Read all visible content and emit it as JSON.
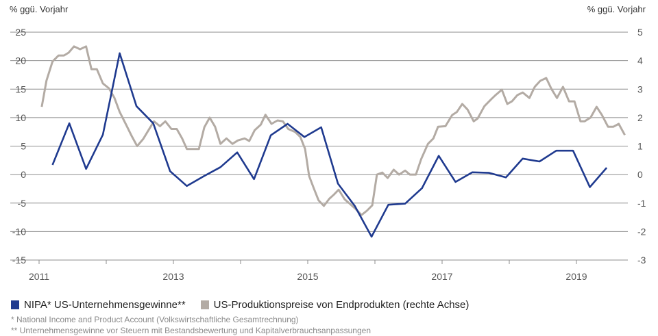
{
  "chart_data": {
    "type": "line",
    "left_axis_label": "% ggü. Vorjahr",
    "right_axis_label": "% ggü. Vorjahr",
    "ylim_left": [
      -15,
      25
    ],
    "ylim_right": [
      -3,
      5
    ],
    "yticks_left": [
      "25",
      "20",
      "15",
      "10",
      "5",
      "0",
      "-5",
      "-10",
      "-15"
    ],
    "yticks_right": [
      "5",
      "4",
      "3",
      "2",
      "1",
      "0",
      "-1",
      "-2",
      "-3"
    ],
    "xticks": [
      "2011",
      "2013",
      "2015",
      "2017",
      "2019"
    ],
    "xlim": [
      2011,
      2019.8
    ],
    "grid": true,
    "legend_position": "bottom",
    "series": [
      {
        "name": "NIPA* US-Unternehmensgewinne**",
        "axis": "left",
        "color": "#1f3a8f",
        "x": [
          2011.2,
          2011.45,
          2011.7,
          2011.95,
          2012.2,
          2012.45,
          2012.7,
          2012.95,
          2013.2,
          2013.45,
          2013.7,
          2013.95,
          2014.2,
          2014.45,
          2014.7,
          2014.95,
          2015.2,
          2015.45,
          2015.7,
          2015.95,
          2016.2,
          2016.45,
          2016.7,
          2016.95,
          2017.2,
          2017.45,
          2017.7,
          2017.95,
          2018.2,
          2018.45,
          2018.7,
          2018.95,
          2019.2,
          2019.45
        ],
        "values": [
          1.7,
          9.0,
          1.0,
          7.0,
          21.3,
          12.0,
          9.0,
          0.6,
          -2.0,
          -0.3,
          1.3,
          3.9,
          -0.8,
          6.9,
          8.9,
          6.6,
          8.3,
          -1.6,
          -5.5,
          -10.9,
          -5.3,
          -5.1,
          -2.4,
          3.3,
          -1.3,
          0.4,
          0.3,
          -0.5,
          2.8,
          2.3,
          4.2,
          4.2,
          -2.2,
          1.2
        ]
      },
      {
        "name": "US-Produktionspreise von Endprodukten (rechte Achse)",
        "axis": "right",
        "color": "#b3aba4",
        "x": [
          2011.04,
          2011.11,
          2011.2,
          2011.29,
          2011.37,
          2011.44,
          2011.52,
          2011.61,
          2011.7,
          2011.78,
          2011.86,
          2011.95,
          2012.04,
          2012.12,
          2012.2,
          2012.3,
          2012.38,
          2012.46,
          2012.55,
          2012.63,
          2012.71,
          2012.8,
          2012.88,
          2012.97,
          2013.05,
          2013.13,
          2013.2,
          2013.3,
          2013.38,
          2013.46,
          2013.54,
          2013.62,
          2013.7,
          2013.79,
          2013.88,
          2013.96,
          2014.06,
          2014.13,
          2014.21,
          2014.3,
          2014.37,
          2014.46,
          2014.55,
          2014.63,
          2014.71,
          2014.81,
          2014.89,
          2014.96,
          2015.02,
          2015.09,
          2015.16,
          2015.24,
          2015.32,
          2015.39,
          2015.46,
          2015.55,
          2015.63,
          2015.71,
          2015.8,
          2015.88,
          2015.96,
          2016.03,
          2016.11,
          2016.19,
          2016.28,
          2016.36,
          2016.45,
          2016.52,
          2016.61,
          2016.69,
          2016.79,
          2016.87,
          2016.94,
          2017.05,
          2017.15,
          2017.22,
          2017.3,
          2017.38,
          2017.47,
          2017.53,
          2017.63,
          2017.73,
          2017.8,
          2017.89,
          2017.97,
          2018.04,
          2018.12,
          2018.2,
          2018.3,
          2018.38,
          2018.46,
          2018.55,
          2018.63,
          2018.71,
          2018.8,
          2018.89,
          2018.97,
          2019.06,
          2019.12,
          2019.21,
          2019.3,
          2019.38,
          2019.47,
          2019.55,
          2019.63,
          2019.72
        ],
        "values": [
          2.38,
          3.3,
          3.97,
          4.18,
          4.18,
          4.28,
          4.5,
          4.4,
          4.5,
          3.7,
          3.7,
          3.2,
          3.03,
          2.7,
          2.2,
          1.73,
          1.35,
          1.0,
          1.25,
          1.56,
          1.87,
          1.7,
          1.87,
          1.6,
          1.6,
          1.27,
          0.9,
          0.9,
          0.9,
          1.66,
          2.0,
          1.68,
          1.08,
          1.27,
          1.08,
          1.2,
          1.27,
          1.18,
          1.56,
          1.75,
          2.1,
          1.78,
          1.9,
          1.87,
          1.6,
          1.5,
          1.32,
          0.9,
          -0.05,
          -0.48,
          -0.9,
          -1.1,
          -0.85,
          -0.7,
          -0.53,
          -0.87,
          -1.03,
          -1.2,
          -1.42,
          -1.27,
          -1.08,
          0,
          0.07,
          -0.12,
          0.17,
          0,
          0.14,
          0,
          0,
          0.55,
          1.08,
          1.27,
          1.68,
          1.7,
          2.09,
          2.2,
          2.48,
          2.28,
          1.87,
          1.97,
          2.4,
          2.64,
          2.8,
          2.98,
          2.48,
          2.57,
          2.79,
          2.88,
          2.69,
          3.08,
          3.29,
          3.39,
          3.0,
          2.69,
          3.08,
          2.57,
          2.57,
          1.87,
          1.87,
          2.0,
          2.38,
          2.09,
          1.68,
          1.68,
          1.78,
          1.39
        ]
      }
    ]
  },
  "footnotes": [
    "* National Income and Product Account (Volkswirtschaftliche Gesamtrechnung)",
    "** Unternehmensgewinne vor Steuern mit Bestandsbewertung und Kapitalverbrauchsanpassungen"
  ]
}
